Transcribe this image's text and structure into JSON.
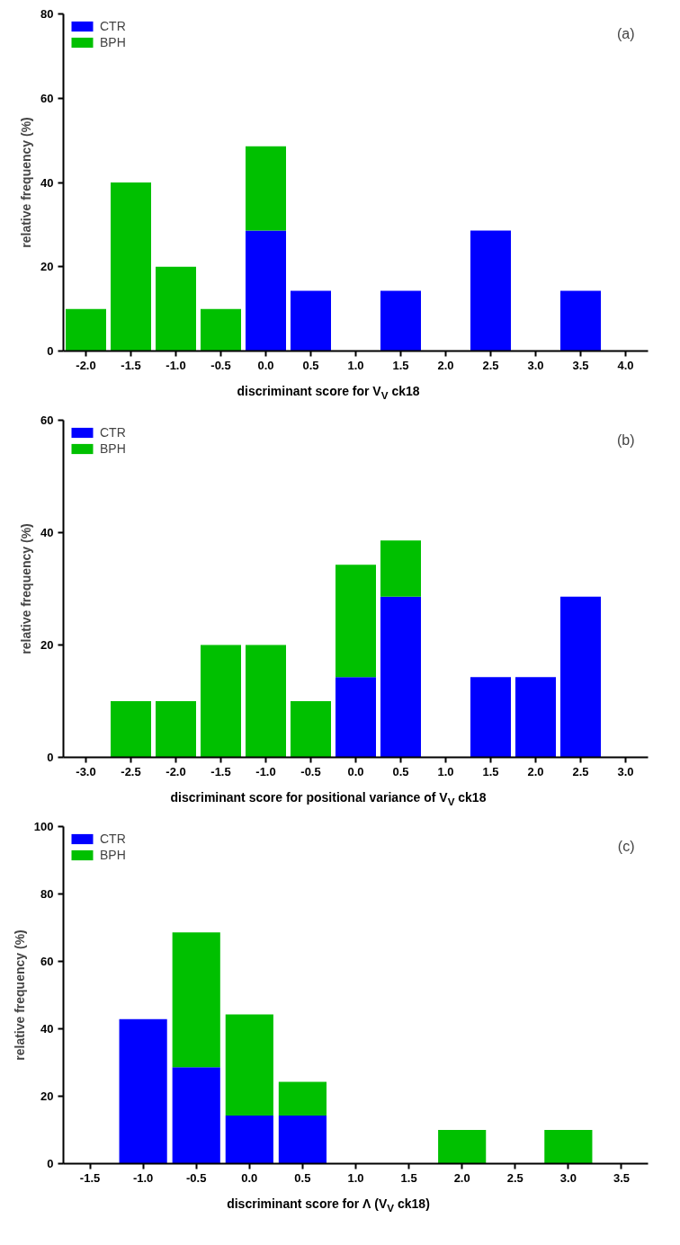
{
  "chart_data": [
    {
      "type": "bar",
      "stacked": true,
      "annotations": [
        "(a)"
      ],
      "xlabel": "discriminant score for V$_{V}$ ck18",
      "ylabel": "relative frequency (%)",
      "x": [
        -2.0,
        -1.5,
        -1.0,
        -0.5,
        0.0,
        0.5,
        1.5,
        2.5,
        3.5
      ],
      "series": [
        {
          "name": "CTR",
          "color": "#0000ff",
          "values": [
            null,
            null,
            null,
            null,
            28.6,
            14.3,
            14.3,
            28.6,
            14.3
          ]
        },
        {
          "name": "BPH",
          "color": "#00c000",
          "values": [
            10,
            40,
            20,
            10,
            20,
            null,
            null,
            null,
            null
          ]
        }
      ],
      "xlim": [
        -2.25,
        4.25
      ],
      "xticks": [
        {
          "value": -2,
          "label": "-2.0"
        },
        {
          "value": -1.5,
          "label": "-1.5"
        },
        {
          "value": -1,
          "label": "-1.0"
        },
        {
          "value": -0.5,
          "label": "-0.5"
        },
        {
          "value": 0,
          "label": "0.0"
        },
        {
          "value": 0.5,
          "label": "0.5"
        },
        {
          "value": 1,
          "label": "1.0"
        },
        {
          "value": 1.5,
          "label": "1.5"
        },
        {
          "value": 2,
          "label": "2.0"
        },
        {
          "value": 2.5,
          "label": "2.5"
        },
        {
          "value": 3,
          "label": "3.0"
        },
        {
          "value": 3.5,
          "label": "3.5"
        },
        {
          "value": 4,
          "label": "4.0"
        }
      ],
      "ylim": [
        0,
        80
      ],
      "yticks": [
        0,
        20,
        40,
        60,
        80
      ],
      "grid": false,
      "legend": "top left"
    },
    {
      "type": "bar",
      "stacked": true,
      "annotations": [
        "(b)"
      ],
      "xlabel": "discriminant score for positional variance of V$_{V}$ ck18",
      "ylabel": "relative frequency (%)",
      "x": [
        -2.5,
        -2.0,
        -1.5,
        -1.0,
        -0.5,
        0.0,
        0.5,
        1.5,
        2.0,
        2.5
      ],
      "series": [
        {
          "name": "CTR",
          "color": "#0000ff",
          "values": [
            null,
            null,
            null,
            null,
            null,
            14.3,
            28.6,
            14.3,
            14.3,
            28.6
          ]
        },
        {
          "name": "BPH",
          "color": "#00c000",
          "values": [
            10,
            10,
            20,
            20,
            10,
            20,
            10,
            null,
            null,
            null
          ]
        }
      ],
      "xlim": [
        -3.25,
        3.25
      ],
      "xticks": [
        {
          "value": -3,
          "label": "-3.0"
        },
        {
          "value": -2.5,
          "label": "-2.5"
        },
        {
          "value": -2,
          "label": "-2.0"
        },
        {
          "value": -1.5,
          "label": "-1.5"
        },
        {
          "value": -1,
          "label": "-1.0"
        },
        {
          "value": -0.5,
          "label": "-0.5"
        },
        {
          "value": 0,
          "label": "0.0"
        },
        {
          "value": 0.5,
          "label": "0.5"
        },
        {
          "value": 1,
          "label": "1.0"
        },
        {
          "value": 1.5,
          "label": "1.5"
        },
        {
          "value": 2,
          "label": "2.0"
        },
        {
          "value": 2.5,
          "label": "2.5"
        },
        {
          "value": 3,
          "label": "3.0"
        }
      ],
      "ylim": [
        0,
        60
      ],
      "yticks": [
        0,
        20,
        40,
        60
      ],
      "grid": false,
      "legend": "top left"
    },
    {
      "type": "bar",
      "stacked": true,
      "annotations": [
        "(c)"
      ],
      "xlabel": "discriminant score for Λ (V$_{V}$ ck18)",
      "ylabel": "relative frequency (%)",
      "x": [
        -1.0,
        -0.5,
        0.0,
        0.5,
        2.0,
        3.0
      ],
      "series": [
        {
          "name": "CTR",
          "color": "#0000ff",
          "values": [
            42.9,
            28.6,
            14.3,
            14.3,
            null,
            null
          ]
        },
        {
          "name": "BPH",
          "color": "#00c000",
          "values": [
            null,
            40,
            30,
            10,
            10,
            10
          ]
        }
      ],
      "xlim": [
        -1.75,
        3.75
      ],
      "xticks": [
        {
          "value": -1.5,
          "label": "-1.5"
        },
        {
          "value": -1,
          "label": "-1.0"
        },
        {
          "value": -0.5,
          "label": "-0.5"
        },
        {
          "value": 0,
          "label": "0.0"
        },
        {
          "value": 0.5,
          "label": "0.5"
        },
        {
          "value": 1,
          "label": "1.0"
        },
        {
          "value": 1.5,
          "label": "1.5"
        },
        {
          "value": 2,
          "label": "2.0"
        },
        {
          "value": 2.5,
          "label": "2.5"
        },
        {
          "value": 3,
          "label": "3.0"
        },
        {
          "value": 3.5,
          "label": "3.5"
        }
      ],
      "ylim": [
        0,
        100
      ],
      "yticks": [
        0,
        20,
        40,
        60,
        80,
        100
      ],
      "grid": false,
      "legend": "top left"
    }
  ]
}
